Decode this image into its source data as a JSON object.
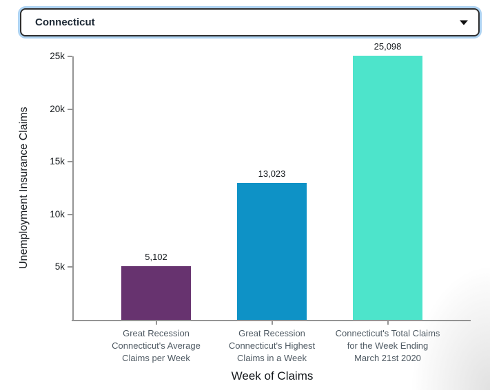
{
  "dropdown": {
    "selected_option": "Connecticut"
  },
  "chart_data": {
    "type": "bar",
    "title": "",
    "xlabel": "Week of Claims",
    "ylabel": "Unemployment Insurance Claims",
    "ylim": [
      0,
      25000
    ],
    "grid": false,
    "legend": false,
    "categories": [
      "Great Recession Connecticut's Average Claims per Week",
      "Great Recession Connecticut's Highest Claims in a Week",
      "Connecticut's Total Claims for the Week Ending March 21st 2020"
    ],
    "category_lines": [
      [
        "Great Recession",
        "Connecticut's Average",
        "Claims per Week"
      ],
      [
        "Great Recession",
        "Connecticut's Highest",
        "Claims in a Week"
      ],
      [
        "Connecticut's Total Claims",
        "for the Week Ending",
        "March 21st 2020"
      ]
    ],
    "values": [
      5102,
      13023,
      25098
    ],
    "value_labels": [
      "5,102",
      "13,023",
      "25,098"
    ],
    "bar_colors": [
      "#67336f",
      "#0e92c6",
      "#4de4cb"
    ],
    "yticks": [
      {
        "value": 5000,
        "label": "5k"
      },
      {
        "value": 10000,
        "label": "10k"
      },
      {
        "value": 15000,
        "label": "15k"
      },
      {
        "value": 20000,
        "label": "20k"
      },
      {
        "value": 25000,
        "label": "25k"
      }
    ]
  },
  "colors": {
    "axis": "#949494",
    "category_label": "#4f5a63",
    "text_dark": "#14181c",
    "dropdown_border": "#2e2e2e",
    "dropdown_focus_ring": "#aed3f2",
    "dropdown_text": "#1b2733"
  }
}
